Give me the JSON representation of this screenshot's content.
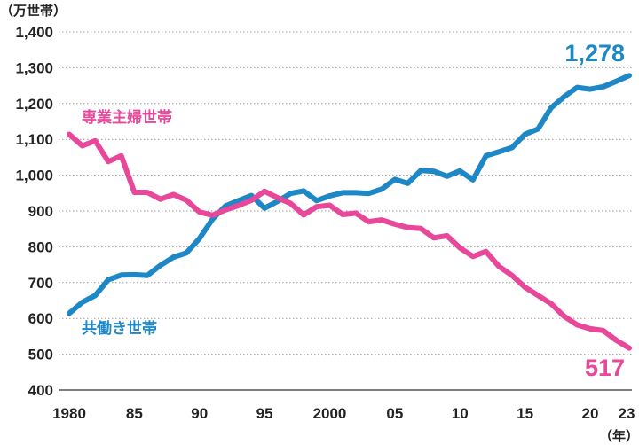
{
  "chart_data": {
    "type": "line",
    "y_unit": "（万世帯）",
    "x_unit": "（年）",
    "ylim": [
      400,
      1400
    ],
    "y_ticks": [
      400,
      500,
      600,
      700,
      800,
      900,
      1000,
      1100,
      1200,
      1300,
      1400
    ],
    "y_tick_labels": [
      "400",
      "500",
      "600",
      "700",
      "800",
      "900",
      "1,000",
      "1,100",
      "1,200",
      "1,300",
      "1,400"
    ],
    "x_ticks": [
      1980,
      1985,
      1990,
      1995,
      2000,
      2005,
      2010,
      2015,
      2020,
      2023
    ],
    "x_tick_labels": [
      "1980",
      "85",
      "90",
      "95",
      "2000",
      "05",
      "10",
      "15",
      "20",
      "23"
    ],
    "grid": "horizontal-dotted",
    "x": [
      1980,
      1981,
      1982,
      1983,
      1984,
      1985,
      1986,
      1987,
      1988,
      1989,
      1990,
      1991,
      1992,
      1993,
      1994,
      1995,
      1996,
      1997,
      1998,
      1999,
      2000,
      2001,
      2002,
      2003,
      2004,
      2005,
      2006,
      2007,
      2008,
      2009,
      2010,
      2011,
      2012,
      2013,
      2014,
      2015,
      2016,
      2017,
      2018,
      2019,
      2020,
      2021,
      2022,
      2023
    ],
    "series": [
      {
        "name": "共働き世帯",
        "color": "#1e88c7",
        "end_label": "1,278",
        "values": [
          614,
          645,
          664,
          708,
          721,
          722,
          720,
          748,
          771,
          783,
          823,
          877,
          914,
          929,
          943,
          908,
          927,
          949,
          956,
          929,
          942,
          951,
          951,
          949,
          961,
          988,
          977,
          1013,
          1011,
          997,
          1012,
          987,
          1054,
          1065,
          1077,
          1114,
          1129,
          1188,
          1219,
          1245,
          1240,
          1247,
          1262,
          1278
        ]
      },
      {
        "name": "専業主婦世帯",
        "color": "#e8489a",
        "end_label": "517",
        "values": [
          1114,
          1082,
          1096,
          1038,
          1054,
          952,
          952,
          933,
          946,
          930,
          897,
          888,
          903,
          915,
          930,
          955,
          937,
          921,
          889,
          912,
          916,
          890,
          894,
          870,
          875,
          863,
          854,
          851,
          825,
          831,
          797,
          773,
          787,
          745,
          720,
          687,
          664,
          641,
          606,
          582,
          571,
          566,
          539,
          517
        ]
      }
    ]
  }
}
